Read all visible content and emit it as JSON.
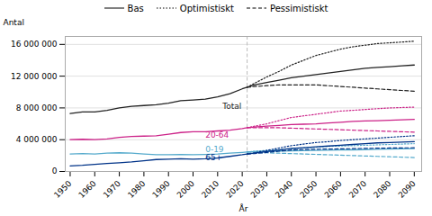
{
  "chart_data": {
    "type": "line",
    "xlabel": "År",
    "ylabel": "Antal",
    "xlim": [
      1948,
      2093
    ],
    "xticks": [
      1950,
      1960,
      1970,
      1980,
      1990,
      2000,
      2010,
      2020,
      2030,
      2040,
      2050,
      2060,
      2070,
      2080,
      2090
    ],
    "ylim": [
      0,
      17000000
    ],
    "yticks": [
      0,
      {
        "value": 4000000,
        "label": "4 000 000"
      },
      {
        "value": 8000000,
        "label": "8 000 000"
      },
      {
        "value": 12000000,
        "label": "12 000 000"
      },
      {
        "value": 16000000,
        "label": "16 000 000"
      }
    ],
    "grid": "y",
    "legend": "top",
    "legend_entries": [
      {
        "name": "Bas",
        "line_style": "solid",
        "color": "#555555"
      },
      {
        "name": "Optimistiskt",
        "line_style": "dotted",
        "color": "#555555"
      },
      {
        "name": "Pessimistiskt",
        "line_style": "dashed",
        "color": "#555555"
      }
    ],
    "vlines": [
      {
        "x": 2022,
        "color": "#bbbbbb",
        "line_style": "dashed"
      }
    ],
    "series": [
      {
        "name": "Total",
        "color": "#222222",
        "line_style": "solid",
        "x": [
          1950,
          1955,
          1960,
          1965,
          1970,
          1975,
          1980,
          1985,
          1990,
          1995,
          2000,
          2005,
          2010,
          2015,
          2020,
          2022
        ],
        "values": [
          7300000,
          7500000,
          7500000,
          7700000,
          8000000,
          8200000,
          8300000,
          8400000,
          8600000,
          8900000,
          9000000,
          9100000,
          9400000,
          9800000,
          10400000,
          10600000
        ]
      },
      {
        "name": "20-64",
        "color": "#cc2288",
        "line_style": "solid",
        "x": [
          1950,
          1955,
          1960,
          1965,
          1970,
          1975,
          1980,
          1985,
          1990,
          1995,
          2000,
          2005,
          2010,
          2015,
          2020,
          2022
        ],
        "values": [
          4000000,
          4050000,
          4000000,
          4100000,
          4300000,
          4400000,
          4450000,
          4500000,
          4700000,
          4900000,
          5000000,
          5000000,
          5100000,
          5200000,
          5400000,
          5500000
        ]
      },
      {
        "name": "0-19",
        "color": "#55aacc",
        "line_style": "solid",
        "x": [
          1950,
          1955,
          1960,
          1965,
          1970,
          1975,
          1980,
          1985,
          1990,
          1995,
          2000,
          2005,
          2010,
          2015,
          2020,
          2022
        ],
        "values": [
          2200000,
          2250000,
          2200000,
          2300000,
          2350000,
          2300000,
          2200000,
          2100000,
          2100000,
          2150000,
          2100000,
          2150000,
          2200000,
          2300000,
          2400000,
          2450000
        ]
      },
      {
        "name": "65+",
        "color": "#003388",
        "line_style": "solid",
        "x": [
          1950,
          1955,
          1960,
          1965,
          1970,
          1975,
          1980,
          1985,
          1990,
          1995,
          2000,
          2005,
          2010,
          2015,
          2020,
          2022
        ],
        "values": [
          700000,
          780000,
          900000,
          1000000,
          1100000,
          1200000,
          1350000,
          1500000,
          1550000,
          1600000,
          1550000,
          1600000,
          1700000,
          1900000,
          2100000,
          2200000
        ]
      },
      {
        "name": "Total",
        "color": "#222222",
        "line_style": "solid",
        "x": [
          2022,
          2025,
          2030,
          2035,
          2040,
          2045,
          2050,
          2055,
          2060,
          2065,
          2070,
          2075,
          2080,
          2085,
          2090
        ],
        "values": [
          10600000,
          10900000,
          11200000,
          11500000,
          11800000,
          12000000,
          12200000,
          12400000,
          12600000,
          12800000,
          13000000,
          13100000,
          13200000,
          13300000,
          13400000
        ]
      },
      {
        "name": "Total",
        "color": "#222222",
        "line_style": "dotted",
        "x": [
          2022,
          2025,
          2030,
          2035,
          2040,
          2045,
          2050,
          2055,
          2060,
          2065,
          2070,
          2075,
          2080,
          2085,
          2090
        ],
        "values": [
          10600000,
          11100000,
          11900000,
          12600000,
          13400000,
          14000000,
          14600000,
          15000000,
          15400000,
          15700000,
          15900000,
          16100000,
          16200000,
          16300000,
          16400000
        ]
      },
      {
        "name": "Total",
        "color": "#222222",
        "line_style": "dashed",
        "x": [
          2022,
          2025,
          2030,
          2035,
          2040,
          2045,
          2050,
          2055,
          2060,
          2065,
          2070,
          2075,
          2080,
          2085,
          2090
        ],
        "values": [
          10600000,
          10700000,
          10800000,
          10900000,
          10900000,
          10900000,
          10900000,
          10800000,
          10700000,
          10600000,
          10500000,
          10400000,
          10300000,
          10200000,
          10100000
        ]
      },
      {
        "name": "20-64",
        "color": "#cc2288",
        "line_style": "solid",
        "x": [
          2022,
          2025,
          2030,
          2035,
          2040,
          2045,
          2050,
          2055,
          2060,
          2065,
          2070,
          2075,
          2080,
          2085,
          2090
        ],
        "values": [
          5500000,
          5600000,
          5700000,
          5800000,
          5900000,
          5950000,
          6000000,
          6100000,
          6200000,
          6300000,
          6350000,
          6400000,
          6450000,
          6500000,
          6550000
        ]
      },
      {
        "name": "20-64",
        "color": "#cc2288",
        "line_style": "dotted",
        "x": [
          2022,
          2025,
          2030,
          2035,
          2040,
          2045,
          2050,
          2055,
          2060,
          2065,
          2070,
          2075,
          2080,
          2085,
          2090
        ],
        "values": [
          5500000,
          5700000,
          6000000,
          6400000,
          6800000,
          7000000,
          7200000,
          7400000,
          7600000,
          7700000,
          7800000,
          7900000,
          8000000,
          8050000,
          8100000
        ]
      },
      {
        "name": "20-64",
        "color": "#cc2288",
        "line_style": "dashed",
        "x": [
          2022,
          2025,
          2030,
          2035,
          2040,
          2045,
          2050,
          2055,
          2060,
          2065,
          2070,
          2075,
          2080,
          2085,
          2090
        ],
        "values": [
          5500000,
          5500000,
          5500000,
          5500000,
          5450000,
          5400000,
          5350000,
          5300000,
          5250000,
          5200000,
          5150000,
          5100000,
          5050000,
          5000000,
          4950000
        ]
      },
      {
        "name": "0-19",
        "color": "#55aacc",
        "line_style": "solid",
        "x": [
          2022,
          2025,
          2030,
          2035,
          2040,
          2045,
          2050,
          2055,
          2060,
          2065,
          2070,
          2075,
          2080,
          2085,
          2090
        ],
        "values": [
          2450000,
          2500000,
          2550000,
          2580000,
          2600000,
          2620000,
          2640000,
          2680000,
          2700000,
          2720000,
          2750000,
          2800000,
          2830000,
          2860000,
          2880000
        ]
      },
      {
        "name": "0-19",
        "color": "#55aacc",
        "line_style": "dotted",
        "x": [
          2022,
          2025,
          2030,
          2035,
          2040,
          2045,
          2050,
          2055,
          2060,
          2065,
          2070,
          2075,
          2080,
          2085,
          2090
        ],
        "values": [
          2450000,
          2550000,
          2650000,
          2750000,
          2850000,
          2950000,
          3050000,
          3150000,
          3200000,
          3250000,
          3300000,
          3350000,
          3400000,
          3450000,
          3500000
        ]
      },
      {
        "name": "0-19",
        "color": "#55aacc",
        "line_style": "dashed",
        "x": [
          2022,
          2025,
          2030,
          2035,
          2040,
          2045,
          2050,
          2055,
          2060,
          2065,
          2070,
          2075,
          2080,
          2085,
          2090
        ],
        "values": [
          2450000,
          2400000,
          2350000,
          2300000,
          2250000,
          2200000,
          2150000,
          2100000,
          2050000,
          2000000,
          1950000,
          1900000,
          1850000,
          1800000,
          1750000
        ]
      },
      {
        "name": "65+",
        "color": "#003388",
        "line_style": "solid",
        "x": [
          2022,
          2025,
          2030,
          2035,
          2040,
          2045,
          2050,
          2055,
          2060,
          2065,
          2070,
          2075,
          2080,
          2085,
          2090
        ],
        "values": [
          2200000,
          2300000,
          2500000,
          2700000,
          2900000,
          3000000,
          3100000,
          3200000,
          3300000,
          3400000,
          3500000,
          3600000,
          3650000,
          3700000,
          3750000
        ]
      },
      {
        "name": "65+",
        "color": "#003388",
        "line_style": "dotted",
        "x": [
          2022,
          2025,
          2030,
          2035,
          2040,
          2045,
          2050,
          2055,
          2060,
          2065,
          2070,
          2075,
          2080,
          2085,
          2090
        ],
        "values": [
          2200000,
          2350000,
          2650000,
          2950000,
          3250000,
          3450000,
          3650000,
          3750000,
          3900000,
          4000000,
          4100000,
          4200000,
          4300000,
          4400000,
          4500000
        ]
      },
      {
        "name": "65+",
        "color": "#003388",
        "line_style": "dashed",
        "x": [
          2022,
          2025,
          2030,
          2035,
          2040,
          2045,
          2050,
          2055,
          2060,
          2065,
          2070,
          2075,
          2080,
          2085,
          2090
        ],
        "values": [
          2200000,
          2250000,
          2400000,
          2550000,
          2700000,
          2750000,
          2800000,
          2820000,
          2840000,
          2870000,
          2900000,
          2930000,
          2950000,
          2970000,
          2980000
        ]
      }
    ],
    "annotations": [
      {
        "text": "Total",
        "x": 2012,
        "y": 8200000,
        "color": "#222222"
      },
      {
        "text": "20-64",
        "x": 2005,
        "y": 4600000,
        "color": "#cc2288"
      },
      {
        "text": "0-19",
        "x": 2005,
        "y": 2800000,
        "color": "#55aacc"
      },
      {
        "text": "65+",
        "x": 2005,
        "y": 1700000,
        "color": "#003388"
      }
    ]
  }
}
